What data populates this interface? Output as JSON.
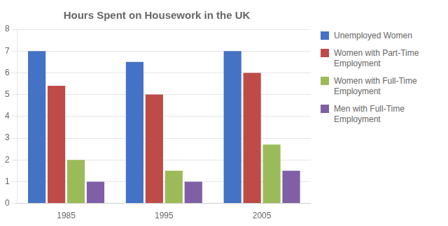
{
  "chart_data": {
    "type": "bar",
    "title": "Hours Spent on Housework in the UK",
    "categories": [
      "1985",
      "1995",
      "2005"
    ],
    "series": [
      {
        "name": "Unemployed Women",
        "color": "#4472C4",
        "values": [
          7.0,
          6.5,
          7.0
        ]
      },
      {
        "name": "Women with Part-Time\nEmployment",
        "color": "#BE4B48",
        "values": [
          5.4,
          5.0,
          6.0
        ]
      },
      {
        "name": "Women with Full-Time\nEmployment",
        "color": "#9BBB59",
        "values": [
          2.0,
          1.5,
          2.7
        ]
      },
      {
        "name": "Men with Full-Time\nEmployment",
        "color": "#7F5FA6",
        "values": [
          1.0,
          1.0,
          1.5
        ]
      }
    ],
    "ylim": [
      0,
      8
    ],
    "yticks": [
      0,
      1,
      2,
      3,
      4,
      5,
      6,
      7,
      8
    ],
    "grid": true,
    "legend": "right"
  }
}
